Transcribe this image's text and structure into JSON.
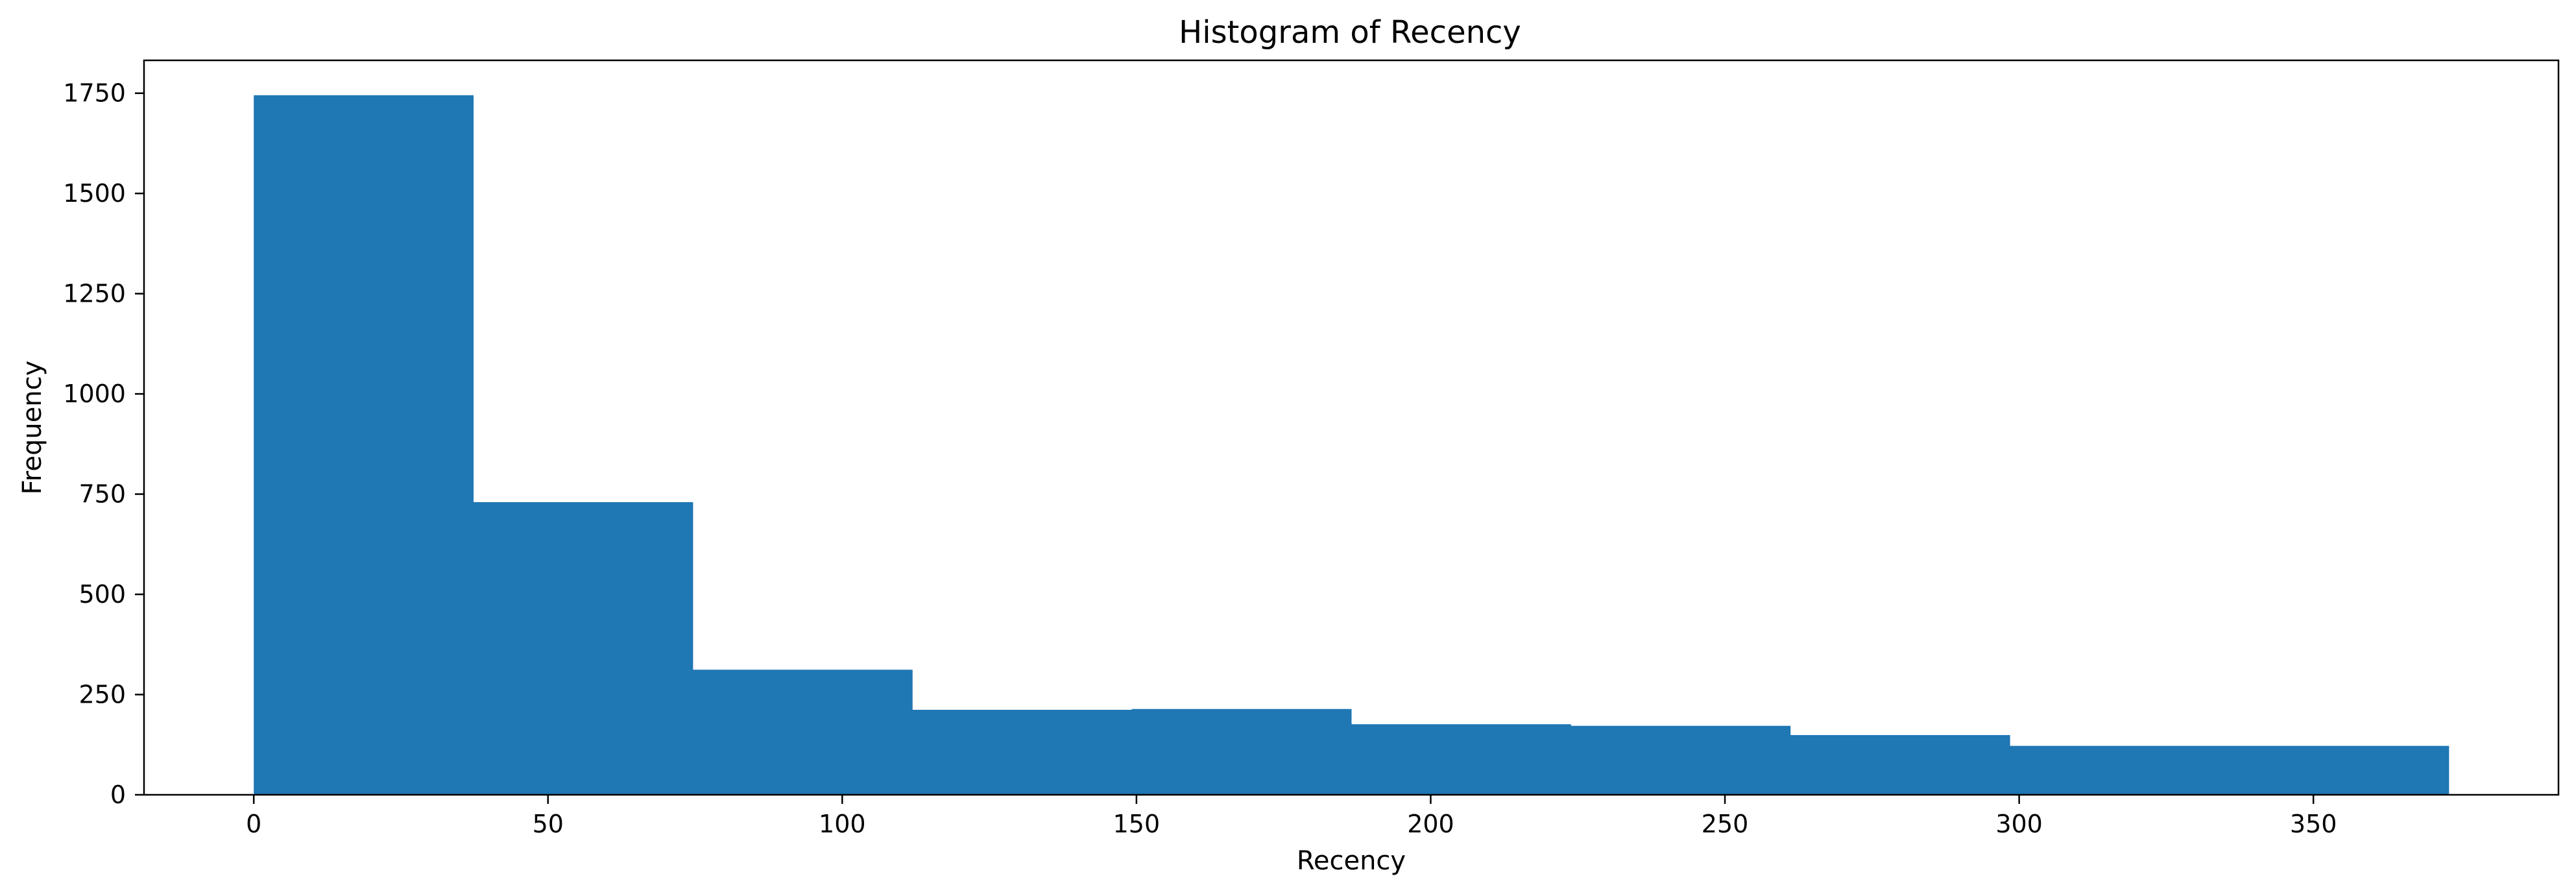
{
  "chart_data": {
    "type": "bar",
    "title": "Histogram of Recency",
    "xlabel": "Recency",
    "ylabel": "Frequency",
    "bin_edges": [
      0,
      37.3,
      74.6,
      111.9,
      149.2,
      186.5,
      223.8,
      261.1,
      298.4,
      335.7,
      373
    ],
    "values": [
      1745,
      730,
      312,
      212,
      214,
      176,
      172,
      149,
      122,
      122
    ],
    "xlim": [
      -18.65,
      391.65
    ],
    "ylim": [
      0,
      1832
    ],
    "xticks": [
      0,
      50,
      100,
      150,
      200,
      250,
      300,
      350
    ],
    "yticks": [
      0,
      250,
      500,
      750,
      1000,
      1250,
      1500,
      1750
    ],
    "bar_color": "#1f77b4",
    "grid": false,
    "legend": "none"
  }
}
